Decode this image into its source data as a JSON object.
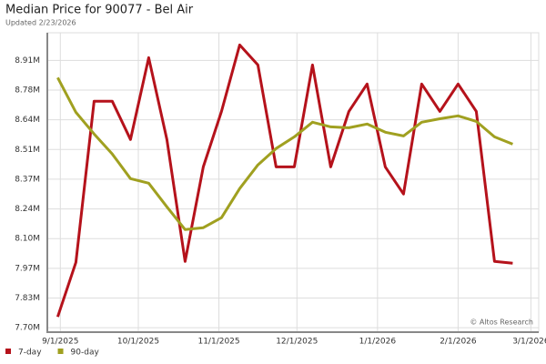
{
  "chart_data": {
    "type": "line",
    "title": "Median Price for 90077 - Bel Air",
    "subtitle": "Updated 2/23/2026",
    "annotation": "© Altos Research",
    "x": [
      "2025-08-31",
      "2025-09-07",
      "2025-09-14",
      "2025-09-21",
      "2025-09-28",
      "2025-10-05",
      "2025-10-12",
      "2025-10-19",
      "2025-10-26",
      "2025-11-02",
      "2025-11-09",
      "2025-11-16",
      "2025-11-23",
      "2025-11-30",
      "2025-12-07",
      "2025-12-14",
      "2025-12-21",
      "2025-12-28",
      "2026-01-04",
      "2026-01-11",
      "2026-01-18",
      "2026-01-25",
      "2026-02-01",
      "2026-02-08",
      "2026-02-15",
      "2026-02-22"
    ],
    "series": [
      {
        "name": "7-day",
        "color": "#b5121b",
        "values": [
          7749000,
          7996000,
          8725000,
          8725000,
          8552000,
          8922000,
          8552000,
          8000000,
          8428000,
          8679000,
          8980000,
          8889000,
          8428000,
          8428000,
          8889000,
          8428000,
          8679000,
          8803000,
          8428000,
          8305000,
          8803000,
          8679000,
          8803000,
          8679000,
          8000000,
          7992000
        ]
      },
      {
        "name": "90-day",
        "color": "#a0a020",
        "values": [
          8832000,
          8675000,
          8577000,
          8486000,
          8375000,
          8354000,
          8247000,
          8144000,
          8153000,
          8198000,
          8330000,
          8437000,
          8511000,
          8564000,
          8630000,
          8609000,
          8605000,
          8622000,
          8585000,
          8568000,
          8630000,
          8646000,
          8659000,
          8634000,
          8564000,
          8531000
        ]
      }
    ],
    "xlim": [
      "2025-08-27",
      "2026-03-04"
    ],
    "xticks": [
      {
        "value": "2025-09-01",
        "label": "9/1/2025"
      },
      {
        "value": "2025-10-01",
        "label": "10/1/2025"
      },
      {
        "value": "2025-11-01",
        "label": "11/1/2025"
      },
      {
        "value": "2025-12-01",
        "label": "12/1/2025"
      },
      {
        "value": "2026-01-01",
        "label": "1/1/2026"
      },
      {
        "value": "2026-02-01",
        "label": "2/1/2026"
      },
      {
        "value": "2026-03-01",
        "label": "3/1/2026"
      }
    ],
    "ylim": [
      7680000,
      9035000
    ],
    "yticks": [
      {
        "value": 7700000,
        "label": "7.70M"
      },
      {
        "value": 7834444,
        "label": "7.83M"
      },
      {
        "value": 7968889,
        "label": "7.97M"
      },
      {
        "value": 8103333,
        "label": "8.10M"
      },
      {
        "value": 8237778,
        "label": "8.24M"
      },
      {
        "value": 8372222,
        "label": "8.37M"
      },
      {
        "value": 8506667,
        "label": "8.51M"
      },
      {
        "value": 8641111,
        "label": "8.64M"
      },
      {
        "value": 8775556,
        "label": "8.78M"
      },
      {
        "value": 8910000,
        "label": "8.91M"
      }
    ],
    "grid": true
  }
}
